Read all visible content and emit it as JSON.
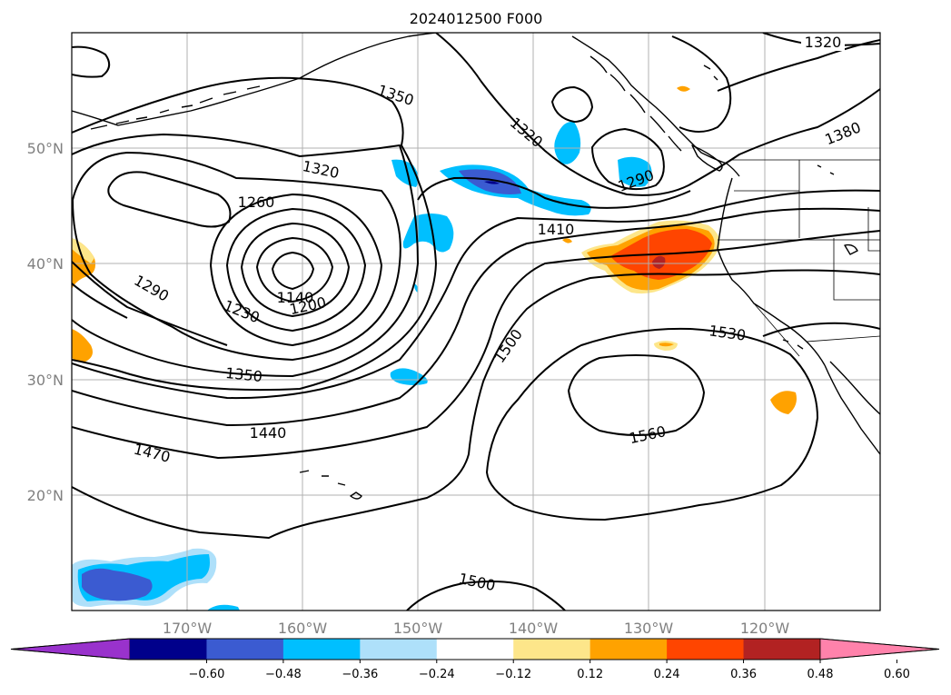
{
  "title": "2024012500 F000",
  "map": {
    "lon_range": [
      -180,
      -110
    ],
    "lat_range": [
      10,
      60
    ],
    "lat_ticks": [
      "50°N",
      "40°N",
      "30°N",
      "20°N"
    ],
    "lon_ticks": [
      "170°W",
      "160°W",
      "150°W",
      "140°W",
      "130°W",
      "120°W"
    ],
    "grid": true,
    "contour_interval": 30,
    "contour_labels": [
      "1320",
      "1350",
      "1320",
      "1320",
      "1260",
      "1380",
      "1290",
      "1410",
      "1290",
      "1140",
      "1200",
      "1230",
      "1500",
      "1530",
      "1350",
      "1440",
      "1560",
      "1470",
      "1500"
    ],
    "fill_colors": {
      "light_blue": "#aee0fa",
      "cyan": "#00bfff",
      "medium_blue": "#3b5bd1",
      "navy": "#00008b",
      "light_yellow": "#fde68a",
      "orange": "#ffa200",
      "red_orange": "#ff4500",
      "dark_red": "#b22222"
    }
  },
  "colorbar": {
    "ticks": [
      "−0.60",
      "−0.48",
      "−0.36",
      "−0.24",
      "−0.12",
      "0.12",
      "0.24",
      "0.36",
      "0.48",
      "0.60"
    ],
    "colors": [
      "#9932cc",
      "#00008b",
      "#3b5bd1",
      "#00bfff",
      "#aee0fa",
      "#ffffff",
      "#fde68a",
      "#ffa200",
      "#ff4500",
      "#b22222",
      "#ff82ab"
    ]
  }
}
